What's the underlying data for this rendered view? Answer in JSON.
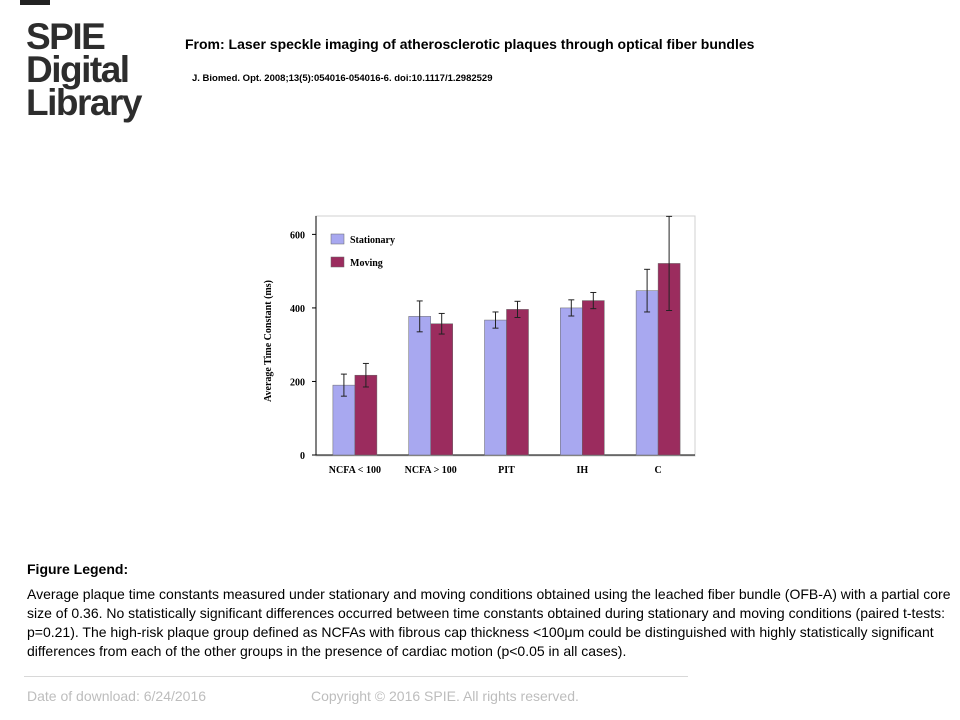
{
  "header": {
    "logo_lines": [
      "SPIE",
      "Digital",
      "Library"
    ],
    "from_title": "From: Laser speckle imaging of atherosclerotic plaques through optical fiber bundles",
    "citation": "J. Biomed. Opt. 2008;13(5):054016-054016-6. doi:10.1117/1.2982529"
  },
  "chart_data": {
    "type": "bar",
    "categories": [
      "NCFA < 100",
      "NCFA > 100",
      "PIT",
      "IH",
      "C"
    ],
    "series": [
      {
        "name": "Stationary",
        "color": "#a8a8f0",
        "values": [
          190,
          377,
          367,
          400,
          447
        ],
        "error": [
          30,
          42,
          22,
          22,
          58
        ]
      },
      {
        "name": "Moving",
        "color": "#9b2c5e",
        "values": [
          217,
          357,
          396,
          420,
          521
        ],
        "error": [
          32,
          28,
          22,
          22,
          128
        ]
      }
    ],
    "ylabel": "Average Time Constant (ms)",
    "xlabel": "",
    "ylim": [
      0,
      650
    ],
    "yticks": [
      0,
      200,
      400,
      600
    ],
    "legend_position": "top-left",
    "grid": false
  },
  "legend": {
    "title": "Figure Legend:",
    "text": "Average plaque time constants measured under stationary and moving conditions obtained using the leached fiber bundle (OFB-A) with a partial core size of 0.36. No statistically significant differences occurred between time constants obtained during stationary and moving conditions (paired t-tests:  p=0.21). The high-risk plaque group defined as NCFAs with fibrous cap thickness <100μm could be distinguished with highly statistically significant differences from each of the other groups in the presence of cardiac motion (p<0.05 in all cases)."
  },
  "footer": {
    "date": "Date of download:  6/24/2016",
    "copyright": "Copyright © 2016 SPIE. All rights reserved."
  }
}
